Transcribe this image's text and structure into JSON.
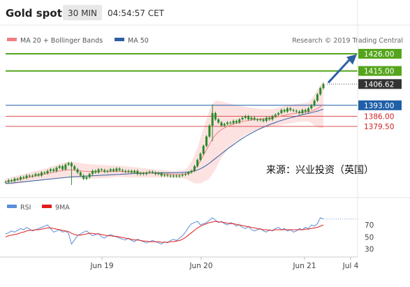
{
  "header": {
    "title": "Gold spot",
    "interval": "30 MIN",
    "time": "04:54:57 CET"
  },
  "legend": {
    "items": [
      {
        "label": "MA 20 + Bollinger Bands",
        "color": "#f08080"
      },
      {
        "label": "MA 50",
        "color": "#2e5fa3"
      }
    ],
    "credit": "Research © 2019 Trading Central"
  },
  "annotation": "来源：兴业投资（英国）",
  "colors": {
    "candle": "#2a8a2a",
    "resistance": "#55a51c",
    "support_main": "#1f5fa8",
    "support_secondary": "#d9534f",
    "bollinger_fill": "#fde2e2",
    "ma20": "#f08080",
    "ma50": "#2e5fa3",
    "arrow": "#2e5fa3",
    "rsi": "#5b8fd9",
    "rsi_ma": "#e31c1c",
    "current_price_bg": "#333333",
    "level_text_support2": "#cc2222"
  },
  "chart_data": [
    {
      "type": "candlestick",
      "title": "Gold spot",
      "x_ticks": [
        "Jun 19",
        "Jun 20",
        "Jun 21",
        "Jul 4"
      ],
      "ylim": [
        1340,
        1435
      ],
      "levels": [
        {
          "value": 1426.0,
          "label": "1426.00",
          "kind": "resistance"
        },
        {
          "value": 1415.0,
          "label": "1415.00",
          "kind": "resistance"
        },
        {
          "value": 1406.62,
          "label": "1406.62",
          "kind": "current"
        },
        {
          "value": 1393.0,
          "label": "1393.00",
          "kind": "pivot"
        },
        {
          "value": 1386.0,
          "label": "1386.00",
          "kind": "support"
        },
        {
          "value": 1379.5,
          "label": "1379.50",
          "kind": "support"
        }
      ],
      "close": [
        1344,
        1345,
        1344.5,
        1346,
        1345.5,
        1347,
        1346.5,
        1348,
        1347.5,
        1348,
        1349,
        1348,
        1350,
        1349.5,
        1351,
        1352,
        1351,
        1353,
        1354,
        1352,
        1355,
        1356,
        1354,
        1352,
        1350,
        1348,
        1346,
        1347,
        1349,
        1351,
        1350,
        1352,
        1351.5,
        1350.5,
        1351,
        1352,
        1351,
        1352.5,
        1351.5,
        1351,
        1350.5,
        1351,
        1350,
        1351,
        1349,
        1349.5,
        1349,
        1350,
        1350.5,
        1350,
        1349,
        1349.5,
        1348,
        1348.5,
        1348,
        1347.5,
        1348,
        1347.5,
        1348,
        1348.5,
        1349,
        1350,
        1351,
        1354,
        1358,
        1362,
        1367,
        1373,
        1380,
        1388,
        1384,
        1382,
        1380,
        1381,
        1382,
        1381.5,
        1383,
        1382,
        1384,
        1385,
        1386,
        1384,
        1385,
        1384,
        1383.5,
        1384,
        1383,
        1385,
        1384,
        1386,
        1387,
        1388,
        1390,
        1389,
        1391,
        1390,
        1389.5,
        1389,
        1388,
        1390,
        1389,
        1391,
        1393,
        1396,
        1400,
        1404,
        1406.62
      ],
      "ma20": [
        1344,
        1344.3,
        1344.6,
        1345,
        1345.4,
        1345.8,
        1346.2,
        1346.6,
        1347,
        1347.4,
        1347.8,
        1348.2,
        1348.6,
        1349,
        1349.4,
        1349.8,
        1350.2,
        1350.6,
        1351,
        1351.3,
        1351.6,
        1351.8,
        1351.7,
        1351.5,
        1351.2,
        1351,
        1350.8,
        1350.7,
        1350.6,
        1350.6,
        1350.6,
        1350.6,
        1350.6,
        1350.6,
        1350.6,
        1350.6,
        1350.7,
        1350.8,
        1350.7,
        1350.6,
        1350.4,
        1350.3,
        1350.2,
        1350.1,
        1350,
        1349.9,
        1349.8,
        1349.7,
        1349.6,
        1349.5,
        1349.4,
        1349.3,
        1349.2,
        1349.1,
        1349,
        1348.9,
        1348.8,
        1348.8,
        1348.8,
        1348.9,
        1349,
        1349.5,
        1350.5,
        1352,
        1354.5,
        1357.5,
        1361,
        1364.5,
        1368,
        1371.5,
        1374,
        1376,
        1377.5,
        1378.5,
        1379.5,
        1380.2,
        1381,
        1381.5,
        1382,
        1382.5,
        1383,
        1383.3,
        1383.6,
        1383.8,
        1384,
        1384.2,
        1384.4,
        1384.6,
        1384.8,
        1385,
        1385.4,
        1385.8,
        1386.2,
        1386.6,
        1387,
        1387.4,
        1387.7,
        1388,
        1388.2,
        1388.4,
        1388.6,
        1388.8,
        1389.3,
        1390,
        1391,
        1392.2,
        1393.5
      ],
      "bb_upper": [
        1346,
        1346.5,
        1347,
        1347.5,
        1348,
        1348.5,
        1349,
        1349.5,
        1350,
        1350.5,
        1351,
        1351.5,
        1352,
        1352.5,
        1353,
        1353.6,
        1354.2,
        1354.8,
        1355.5,
        1356,
        1356.5,
        1356.8,
        1356.8,
        1356.6,
        1356.3,
        1356,
        1355.7,
        1355.5,
        1355.3,
        1355.2,
        1355.1,
        1355,
        1354.9,
        1354.8,
        1354.7,
        1354.6,
        1354.5,
        1354.4,
        1354.3,
        1354.2,
        1354,
        1353.8,
        1353.6,
        1353.4,
        1353.2,
        1353,
        1352.8,
        1352.6,
        1352.4,
        1352.2,
        1352,
        1351.8,
        1351.6,
        1351.4,
        1351.2,
        1351,
        1351,
        1351,
        1351.2,
        1351.5,
        1352,
        1354,
        1357,
        1361,
        1366,
        1372,
        1378,
        1384,
        1390,
        1394,
        1396,
        1396,
        1395.5,
        1395,
        1394.5,
        1394,
        1393.5,
        1393,
        1392.7,
        1392.4,
        1392,
        1391.7,
        1391.4,
        1391.2,
        1391,
        1390.8,
        1390.6,
        1390.5,
        1390.5,
        1390.6,
        1391,
        1391.5,
        1392,
        1392.5,
        1393,
        1393.3,
        1393.6,
        1393.8,
        1394,
        1394.2,
        1394.5,
        1395,
        1397,
        1400,
        1403,
        1406,
        1408.5
      ],
      "bb_lower": [
        1342,
        1342.1,
        1342.2,
        1342.5,
        1342.8,
        1343.1,
        1343.4,
        1343.7,
        1344,
        1344.3,
        1344.6,
        1344.9,
        1345.2,
        1345.5,
        1345.8,
        1346,
        1346.2,
        1346.4,
        1346.5,
        1346.6,
        1346.7,
        1346.8,
        1346.6,
        1346.4,
        1346.1,
        1346,
        1345.9,
        1345.9,
        1345.9,
        1346,
        1346.1,
        1346.2,
        1346.3,
        1346.4,
        1346.5,
        1346.6,
        1346.9,
        1347.2,
        1347.1,
        1347,
        1346.8,
        1346.8,
        1346.8,
        1346.8,
        1346.8,
        1346.8,
        1346.8,
        1346.8,
        1346.8,
        1346.8,
        1346.8,
        1346.8,
        1346.8,
        1346.8,
        1346.8,
        1346.8,
        1346.6,
        1346.6,
        1346.4,
        1346.3,
        1346,
        1345,
        1344,
        1343,
        1343,
        1343,
        1344,
        1345,
        1346,
        1349,
        1352,
        1356,
        1359.5,
        1362,
        1364.5,
        1366.4,
        1368.5,
        1370,
        1371.3,
        1372.6,
        1374,
        1374.9,
        1375.8,
        1376.4,
        1377,
        1377.6,
        1378.2,
        1378.7,
        1379.1,
        1379.4,
        1379.8,
        1380.1,
        1380.4,
        1380.7,
        1381,
        1381.5,
        1381.8,
        1382.2,
        1382.4,
        1382.6,
        1382.7,
        1382.6,
        1381.6,
        1380,
        1379,
        1378.4,
        1378.5
      ],
      "ma50": [
        1343,
        1343.1,
        1343.2,
        1343.4,
        1343.6,
        1343.8,
        1344,
        1344.2,
        1344.4,
        1344.6,
        1344.8,
        1345,
        1345.2,
        1345.4,
        1345.6,
        1345.8,
        1346,
        1346.2,
        1346.4,
        1346.6,
        1346.8,
        1347,
        1347.2,
        1347.3,
        1347.4,
        1347.5,
        1347.6,
        1347.7,
        1347.8,
        1347.9,
        1348,
        1348.1,
        1348.2,
        1348.3,
        1348.4,
        1348.5,
        1348.6,
        1348.7,
        1348.8,
        1348.9,
        1349,
        1349.1,
        1349.2,
        1349.3,
        1349.4,
        1349.5,
        1349.5,
        1349.6,
        1349.6,
        1349.7,
        1349.7,
        1349.8,
        1349.8,
        1349.8,
        1349.8,
        1349.8,
        1349.8,
        1349.8,
        1349.9,
        1350,
        1350.1,
        1350.3,
        1350.6,
        1351,
        1351.6,
        1352.4,
        1353.4,
        1354.6,
        1356,
        1357.5,
        1359,
        1360.5,
        1362,
        1363.5,
        1365,
        1366.4,
        1367.8,
        1369.2,
        1370.5,
        1371.8,
        1373,
        1374.1,
        1375.2,
        1376.2,
        1377.2,
        1378.1,
        1379,
        1379.8,
        1380.6,
        1381.3,
        1382,
        1382.7,
        1383.3,
        1383.9,
        1384.5,
        1385,
        1385.5,
        1386,
        1386.5,
        1387,
        1387.4,
        1387.8,
        1388.3,
        1388.8,
        1389.3,
        1389.9,
        1390.5
      ]
    },
    {
      "type": "line",
      "title": "",
      "yticks": [
        30,
        50,
        70
      ],
      "ylim": [
        20,
        90
      ],
      "series": [
        {
          "name": "RSI",
          "values": [
            55,
            57,
            60,
            58,
            61,
            64,
            62,
            66,
            63,
            60,
            62,
            64,
            66,
            68,
            70,
            64,
            58,
            60,
            62,
            58,
            60,
            56,
            38,
            45,
            52,
            55,
            58,
            60,
            56,
            52,
            54,
            56,
            50,
            48,
            52,
            54,
            52,
            50,
            48,
            46,
            45,
            48,
            44,
            42,
            46,
            44,
            42,
            40,
            42,
            44,
            42,
            40,
            38,
            42,
            40,
            44,
            46,
            44,
            48,
            52,
            58,
            66,
            72,
            74,
            76,
            70,
            72,
            74,
            78,
            82,
            78,
            74,
            76,
            72,
            70,
            74,
            72,
            68,
            70,
            66,
            64,
            68,
            62,
            60,
            62,
            64,
            60,
            58,
            62,
            60,
            64,
            66,
            62,
            64,
            60,
            62,
            58,
            60,
            64,
            62,
            66,
            64,
            70,
            68,
            72,
            82,
            80
          ]
        },
        {
          "name": "9MA",
          "values": [
            50,
            52,
            53,
            54,
            55,
            57,
            58,
            60,
            61,
            61,
            62,
            62,
            63,
            64,
            65,
            65,
            64,
            63,
            62,
            61,
            60,
            59,
            56,
            54,
            53,
            53,
            54,
            55,
            56,
            56,
            55,
            55,
            54,
            53,
            52,
            52,
            51,
            51,
            50,
            49,
            48,
            47,
            46,
            45,
            45,
            44,
            43,
            43,
            42,
            42,
            42,
            42,
            41,
            41,
            41,
            42,
            42,
            43,
            44,
            46,
            49,
            53,
            57,
            61,
            65,
            68,
            70,
            72,
            74,
            75,
            76,
            75,
            75,
            74,
            73,
            72,
            72,
            71,
            70,
            69,
            68,
            67,
            66,
            65,
            64,
            63,
            62,
            62,
            61,
            61,
            62,
            62,
            62,
            62,
            62,
            62,
            62,
            62,
            62,
            62,
            63,
            63,
            64,
            65,
            66,
            68,
            70
          ]
        }
      ]
    }
  ]
}
